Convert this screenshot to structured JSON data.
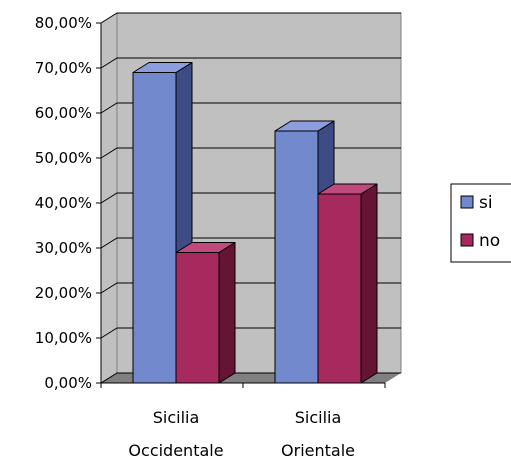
{
  "chart_data": {
    "type": "bar",
    "style": "3d-clustered-column",
    "categories": [
      [
        "Sicilia",
        "Occidentale"
      ],
      [
        "Sicilia",
        "Orientale"
      ]
    ],
    "series": [
      {
        "name": "si",
        "values": [
          0.69,
          0.56
        ],
        "color": "#7389CE",
        "color_top": "#8C9EDE",
        "color_side": "#3E4C86"
      },
      {
        "name": "no",
        "values": [
          0.29,
          0.42
        ],
        "color": "#A72A5F",
        "color_top": "#C04A7D",
        "color_side": "#661433"
      }
    ],
    "yticks": [
      "0,00%",
      "10,00%",
      "20,00%",
      "30,00%",
      "40,00%",
      "50,00%",
      "60,00%",
      "70,00%",
      "80,00%"
    ],
    "ylim": [
      0,
      0.8
    ],
    "grid": true,
    "legend_position": "right",
    "wall_color": "#C0C0C0",
    "floor_color": "#808080",
    "title": "",
    "xlabel": "",
    "ylabel": ""
  }
}
